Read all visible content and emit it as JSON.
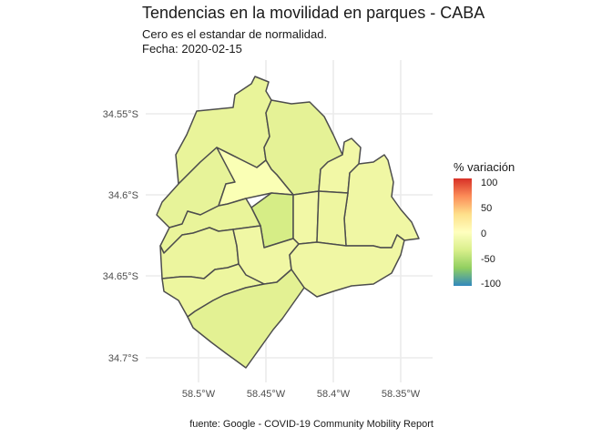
{
  "title": "Tendencias en la movilidad en parques - CABA",
  "subtitle_1": "Cero es el estandar de normalidad.",
  "subtitle_2": "Fecha: 2020-02-15",
  "caption": "fuente: Google - COVID-19 Community Mobility Report",
  "legend": {
    "title": "% variación",
    "labels": [
      "100",
      "50",
      "0",
      "-50",
      "-100"
    ]
  },
  "axes": {
    "x_ticks": [
      "58.5°W",
      "58.45°W",
      "58.4°W",
      "58.35°W"
    ],
    "y_ticks": [
      "34.55°S",
      "34.6°S",
      "34.65°S",
      "34.7°S"
    ]
  },
  "colors": {
    "scale_high": "#d73027",
    "scale_zero": "#ffffbf",
    "scale_low": "#3288bd",
    "border": "#4d4d4d",
    "grid": "#ebebeb"
  }
}
